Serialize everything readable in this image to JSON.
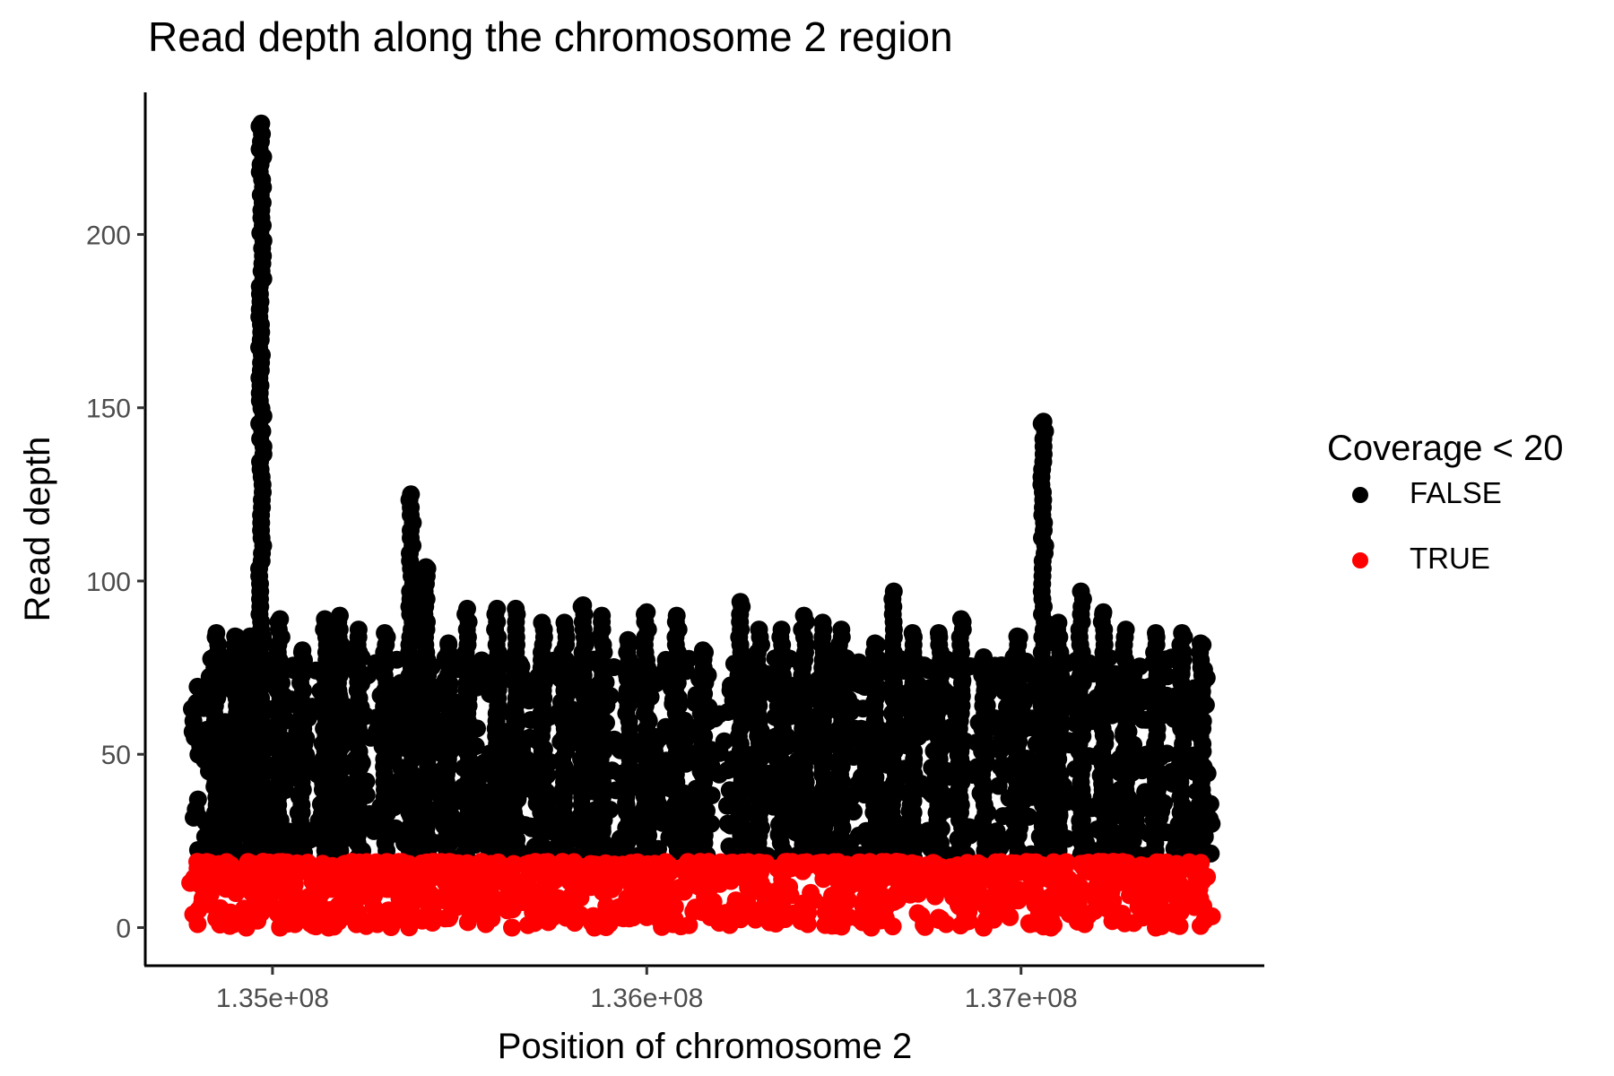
{
  "chart_data": {
    "type": "scatter",
    "title": "Read depth along the chromosome 2 region",
    "xlabel": "Position of chromosome 2",
    "ylabel": "Read depth",
    "xlim": [
      134660000,
      137650000
    ],
    "ylim": [
      -11,
      241
    ],
    "x_ticks": [
      135000000,
      136000000,
      137000000
    ],
    "x_tick_labels": [
      "1.35e+08",
      "1.36e+08",
      "1.37e+08"
    ],
    "y_ticks": [
      0,
      50,
      100,
      150,
      200
    ],
    "y_tick_labels": [
      "0",
      "50",
      "100",
      "150",
      "200"
    ],
    "grid": false,
    "legend": {
      "title": "Coverage < 20",
      "placement": "right",
      "entries": [
        {
          "label": "FALSE",
          "color": "#000000"
        },
        {
          "label": "TRUE",
          "color": "#ff0000"
        }
      ]
    },
    "x_range_data": [
      134780000,
      137510000
    ],
    "series": [
      {
        "name": "FALSE",
        "color": "#000000",
        "description_of_values": "dense band of read depth >= 20 across the whole range",
        "band": {
          "low": 20,
          "typical_high": 78
        },
        "peaks": [
          {
            "x": 134850000,
            "y": 85
          },
          {
            "x": 134900000,
            "y": 84
          },
          {
            "x": 134940000,
            "y": 84
          },
          {
            "x": 134970000,
            "y": 232
          },
          {
            "x": 135020000,
            "y": 89
          },
          {
            "x": 135080000,
            "y": 80
          },
          {
            "x": 135140000,
            "y": 89
          },
          {
            "x": 135180000,
            "y": 90
          },
          {
            "x": 135230000,
            "y": 86
          },
          {
            "x": 135300000,
            "y": 85
          },
          {
            "x": 135370000,
            "y": 125
          },
          {
            "x": 135410000,
            "y": 104
          },
          {
            "x": 135470000,
            "y": 82
          },
          {
            "x": 135520000,
            "y": 92
          },
          {
            "x": 135600000,
            "y": 92
          },
          {
            "x": 135650000,
            "y": 92
          },
          {
            "x": 135720000,
            "y": 88
          },
          {
            "x": 135780000,
            "y": 88
          },
          {
            "x": 135830000,
            "y": 93
          },
          {
            "x": 135880000,
            "y": 90
          },
          {
            "x": 135950000,
            "y": 83
          },
          {
            "x": 136000000,
            "y": 91
          },
          {
            "x": 136080000,
            "y": 90
          },
          {
            "x": 136150000,
            "y": 80
          },
          {
            "x": 136250000,
            "y": 94
          },
          {
            "x": 136300000,
            "y": 86
          },
          {
            "x": 136360000,
            "y": 86
          },
          {
            "x": 136420000,
            "y": 90
          },
          {
            "x": 136470000,
            "y": 88
          },
          {
            "x": 136520000,
            "y": 86
          },
          {
            "x": 136610000,
            "y": 82
          },
          {
            "x": 136660000,
            "y": 97
          },
          {
            "x": 136710000,
            "y": 85
          },
          {
            "x": 136780000,
            "y": 85
          },
          {
            "x": 136840000,
            "y": 89
          },
          {
            "x": 136900000,
            "y": 78
          },
          {
            "x": 136990000,
            "y": 84
          },
          {
            "x": 137060000,
            "y": 146
          },
          {
            "x": 137100000,
            "y": 88
          },
          {
            "x": 137160000,
            "y": 97
          },
          {
            "x": 137220000,
            "y": 91
          },
          {
            "x": 137280000,
            "y": 86
          },
          {
            "x": 137360000,
            "y": 85
          },
          {
            "x": 137430000,
            "y": 85
          },
          {
            "x": 137480000,
            "y": 82
          }
        ]
      },
      {
        "name": "TRUE",
        "color": "#ff0000",
        "description_of_values": "read depth < 20, scattered from 0 to 19 across the range",
        "band": {
          "low": 0,
          "typical_high": 19
        },
        "points": [
          {
            "x": 134800000,
            "y": 1
          },
          {
            "x": 134880000,
            "y": 3
          },
          {
            "x": 134930000,
            "y": 0
          },
          {
            "x": 134960000,
            "y": 2
          },
          {
            "x": 135020000,
            "y": 0
          },
          {
            "x": 135060000,
            "y": 1
          },
          {
            "x": 135150000,
            "y": 0
          },
          {
            "x": 135210000,
            "y": 4
          },
          {
            "x": 135280000,
            "y": 1
          },
          {
            "x": 135310000,
            "y": 5
          },
          {
            "x": 135400000,
            "y": 2
          },
          {
            "x": 135480000,
            "y": 6
          },
          {
            "x": 135570000,
            "y": 1
          },
          {
            "x": 135640000,
            "y": 0
          },
          {
            "x": 135700000,
            "y": 2
          },
          {
            "x": 135790000,
            "y": 4
          },
          {
            "x": 135860000,
            "y": 0
          },
          {
            "x": 135920000,
            "y": 3
          },
          {
            "x": 136000000,
            "y": 3
          },
          {
            "x": 136070000,
            "y": 1
          },
          {
            "x": 136170000,
            "y": 3
          },
          {
            "x": 136250000,
            "y": 6
          },
          {
            "x": 136380000,
            "y": 4
          },
          {
            "x": 136430000,
            "y": 1
          },
          {
            "x": 136540000,
            "y": 3
          },
          {
            "x": 136600000,
            "y": 0
          },
          {
            "x": 136670000,
            "y": 8
          },
          {
            "x": 136800000,
            "y": 1
          },
          {
            "x": 136900000,
            "y": 0
          },
          {
            "x": 136970000,
            "y": 3
          },
          {
            "x": 137080000,
            "y": 0
          },
          {
            "x": 137170000,
            "y": 1
          },
          {
            "x": 137270000,
            "y": 4
          },
          {
            "x": 137360000,
            "y": 0
          },
          {
            "x": 137410000,
            "y": 1
          },
          {
            "x": 137490000,
            "y": 2
          }
        ]
      }
    ]
  }
}
